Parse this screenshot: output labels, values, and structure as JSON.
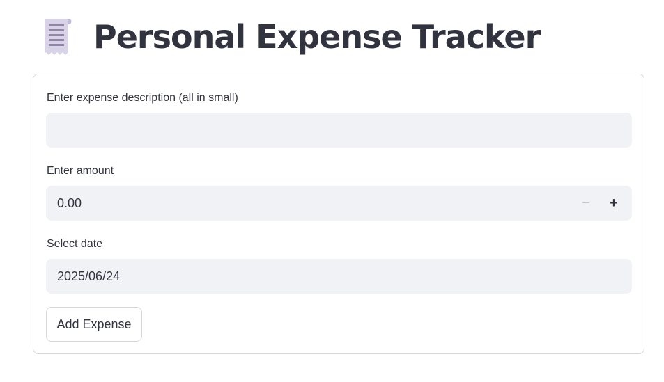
{
  "header": {
    "icon": "receipt-icon",
    "title": "Personal Expense Tracker"
  },
  "form": {
    "description": {
      "label": "Enter expense description (all in small)",
      "value": ""
    },
    "amount": {
      "label": "Enter amount",
      "value": "0.00",
      "decrement_symbol": "−",
      "increment_symbol": "+"
    },
    "date": {
      "label": "Select date",
      "value": "2025/06/24"
    },
    "submit_label": "Add Expense"
  }
}
